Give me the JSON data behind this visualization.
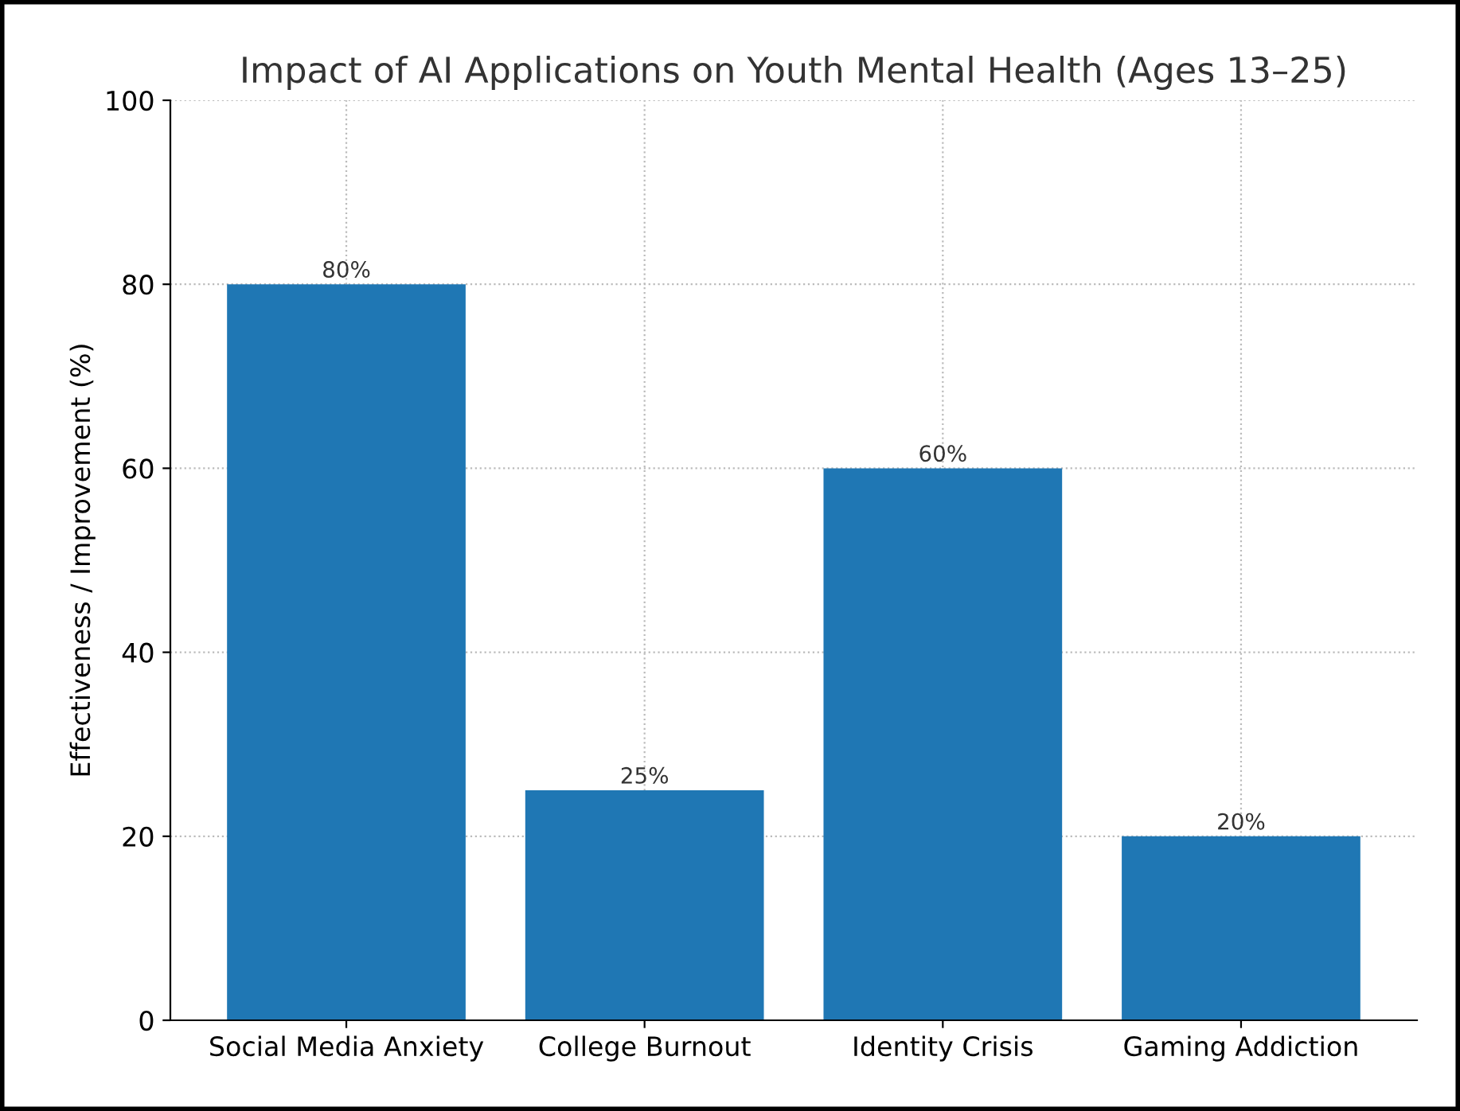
{
  "chart_data": {
    "type": "bar",
    "title": "Impact of AI Applications on Youth Mental Health (Ages 13–25)",
    "ylabel": "Effectiveness / Improvement (%)",
    "categories": [
      "Social Media Anxiety",
      "College Burnout",
      "Identity Crisis",
      "Gaming Addiction"
    ],
    "values": [
      80,
      25,
      60,
      20
    ],
    "value_labels": [
      "80%",
      "25%",
      "60%",
      "20%"
    ],
    "color": "#1f77b4",
    "ylim": [
      0,
      100
    ],
    "yticks": [
      0,
      20,
      40,
      60,
      80,
      100
    ],
    "grid": true
  }
}
